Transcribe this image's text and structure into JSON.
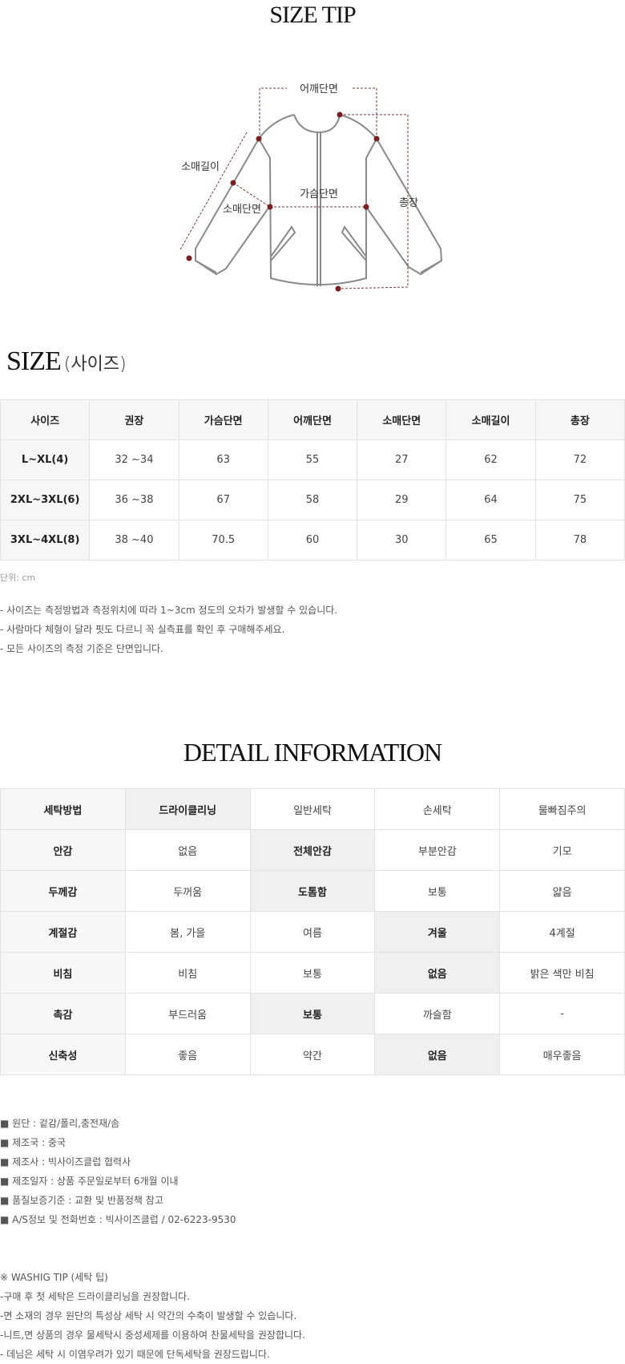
{
  "size_tip": {
    "title": "SIZE TIP",
    "labels": {
      "shoulder": "어깨단면",
      "sleeve_length": "소매길이",
      "sleeve_width": "소매단면",
      "chest": "가슴단면",
      "total_length": "총장"
    },
    "marker_color": "#7a1f1f"
  },
  "size": {
    "title": "SIZE",
    "title_sub": "(사이즈)",
    "headers": [
      "사이즈",
      "권장",
      "가슴단면",
      "어깨단면",
      "소매단면",
      "소매길이",
      "총장"
    ],
    "rows": [
      [
        "L~XL(4)",
        "32 ~34",
        "63",
        "55",
        "27",
        "62",
        "72"
      ],
      [
        "2XL~3XL(6)",
        "36 ~38",
        "67",
        "58",
        "29",
        "64",
        "75"
      ],
      [
        "3XL~4XL(8)",
        "38 ~40",
        "70.5",
        "60",
        "30",
        "65",
        "78"
      ]
    ],
    "unit": "단위: cm",
    "notes": [
      "- 사이즈는 측정방법과 측정위치에 따라 1~3cm 정도의 오차가 발생할 수 있습니다.",
      "- 사람마다 체형이 달라 핏도 다르니 꼭 실측표를 확인 후 구매해주세요.",
      "- 모든 사이즈의 측정 기준은 단면입니다."
    ]
  },
  "detail": {
    "title": "DETAIL INFORMATION",
    "rows": [
      {
        "label": "세탁방법",
        "options": [
          "드라이클리닝",
          "일반세탁",
          "손세탁",
          "물빠짐주의"
        ],
        "selected": 0
      },
      {
        "label": "안감",
        "options": [
          "없음",
          "전체안감",
          "부분안감",
          "기모"
        ],
        "selected": 1
      },
      {
        "label": "두께감",
        "options": [
          "두꺼움",
          "도톰함",
          "보통",
          "얇음"
        ],
        "selected": 1
      },
      {
        "label": "계절감",
        "options": [
          "봄, 가을",
          "여름",
          "겨울",
          "4계절"
        ],
        "selected": 2
      },
      {
        "label": "비침",
        "options": [
          "비침",
          "보통",
          "없음",
          "밝은 색만 비침"
        ],
        "selected": 2
      },
      {
        "label": "촉감",
        "options": [
          "부드러움",
          "보통",
          "까슬함",
          "-"
        ],
        "selected": 1
      },
      {
        "label": "신축성",
        "options": [
          "좋음",
          "약간",
          "없음",
          "매우좋음"
        ],
        "selected": 2
      }
    ],
    "highlight_color": "#f0f0f0"
  },
  "info": [
    "■ 원단 : 겉감/폴리,충전재/솜",
    "■ 제조국 : 중국",
    "■ 제조사 : 빅사이즈클럽 협력사",
    "■ 제조일자 : 상품 주문일로부터 6개월 이내",
    "■ 품질보증기준 : 교환 및 반품정책 참고",
    "■ A/S정보 및 전화번호 : 빅사이즈클럽 / 02-6223-9530"
  ],
  "washing": [
    "※ WASHIG TIP (세탁 팁)",
    "-구매 후 첫 세탁은 드라이클리닝을 권장합니다.",
    "-면 소재의 경우 원단의 특성상 세탁 시 약간의 수축이 발생할 수 있습니다.",
    "-니트,면 상품의 경우 물세탁시 중성세제를 이용하여 찬물세탁을 권장합니다.",
    "- 데님은 세탁 시 이염우려가 있기 때문에 단독세탁을 권장드립니다."
  ]
}
